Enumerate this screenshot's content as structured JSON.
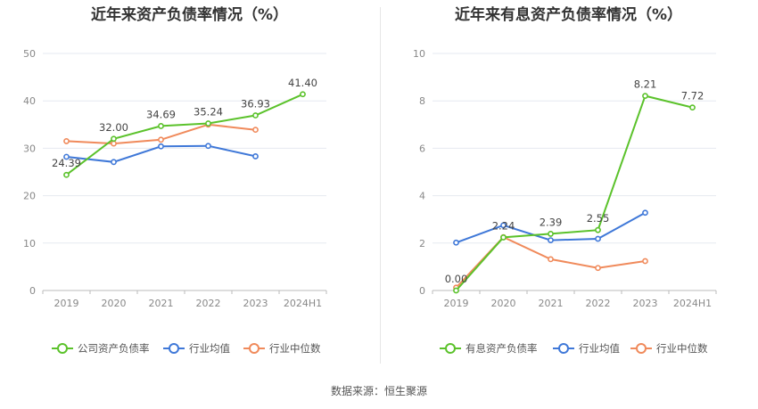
{
  "source_text": "数据来源：恒生聚源",
  "colors": {
    "green": "#5bc22b",
    "blue": "#3f78d8",
    "orange": "#f08a5b",
    "axis": "#bbbbbb",
    "grid": "#e6e9f0"
  },
  "chart_data": [
    {
      "type": "line",
      "title": "近年来资产负债率情况（%）",
      "categories": [
        "2019",
        "2020",
        "2021",
        "2022",
        "2023",
        "2024H1"
      ],
      "ylim": [
        0,
        50
      ],
      "yticks": [
        0,
        10,
        20,
        30,
        40,
        50
      ],
      "grid": true,
      "legend_position": "bottom",
      "series": [
        {
          "name": "公司资产负债率",
          "color": "#5bc22b",
          "values": [
            24.39,
            32.0,
            34.69,
            35.24,
            36.93,
            41.4
          ],
          "labels": [
            "24.39",
            "32.00",
            "34.69",
            "35.24",
            "36.93",
            "41.40"
          ]
        },
        {
          "name": "行业均值",
          "color": "#3f78d8",
          "values": [
            28.2,
            27.1,
            30.4,
            30.5,
            28.3,
            null
          ]
        },
        {
          "name": "行业中位数",
          "color": "#f08a5b",
          "values": [
            31.5,
            31.0,
            31.8,
            35.0,
            33.9,
            null
          ]
        }
      ]
    },
    {
      "type": "line",
      "title": "近年来有息资产负债率情况（%）",
      "categories": [
        "2019",
        "2020",
        "2021",
        "2022",
        "2023",
        "2024H1"
      ],
      "ylim": [
        0,
        10
      ],
      "yticks": [
        0,
        2,
        4,
        6,
        8,
        10
      ],
      "grid": true,
      "legend_position": "bottom",
      "series": [
        {
          "name": "有息资产负债率",
          "color": "#5bc22b",
          "values": [
            0.0,
            2.24,
            2.39,
            2.55,
            8.21,
            7.72
          ],
          "labels": [
            "0.00",
            "2.24",
            "2.39",
            "2.55",
            "8.21",
            "7.72"
          ]
        },
        {
          "name": "行业均值",
          "color": "#3f78d8",
          "values": [
            2.02,
            2.75,
            2.12,
            2.18,
            3.28,
            null
          ]
        },
        {
          "name": "行业中位数",
          "color": "#f08a5b",
          "values": [
            0.12,
            2.25,
            1.32,
            0.95,
            1.24,
            null
          ]
        }
      ]
    }
  ]
}
